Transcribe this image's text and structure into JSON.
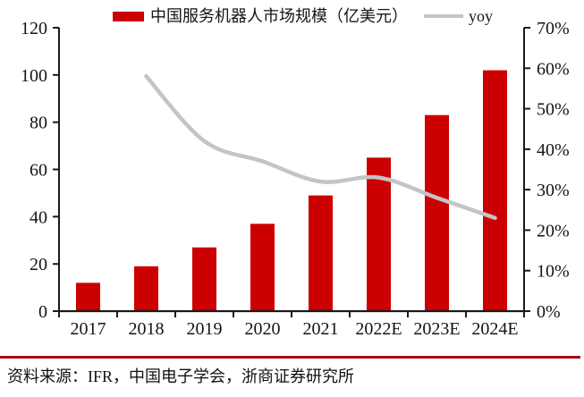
{
  "legend": {
    "bar_series_label": "中国服务机器人市场规模（亿美元）",
    "line_series_label": "yoy"
  },
  "footer": {
    "source_text": "资料来源：IFR，中国电子学会，浙商证券研究所"
  },
  "colors": {
    "bar": "#CC0000",
    "line": "#C4C4C4",
    "axis": "#1A1A1A",
    "footer_rule": "#A40F0F",
    "text": "#141414"
  },
  "chart_data": {
    "type": "bar",
    "subtype": "combo-bar-line",
    "title": "",
    "categories": [
      "2017",
      "2018",
      "2019",
      "2020",
      "2021",
      "2022E",
      "2023E",
      "2024E"
    ],
    "series": [
      {
        "name": "中国服务机器人市场规模（亿美元）",
        "type": "bar",
        "axis": "left",
        "unit": "亿美元",
        "values": [
          12,
          19,
          27,
          37,
          49,
          65,
          83,
          102
        ]
      },
      {
        "name": "yoy",
        "type": "line",
        "axis": "right",
        "unit": "%",
        "values": [
          null,
          58,
          42,
          37,
          32,
          33,
          28,
          23
        ]
      }
    ],
    "left_axis": {
      "min": 0,
      "max": 120,
      "step": 20,
      "tick_labels": [
        "0",
        "20",
        "40",
        "60",
        "80",
        "100",
        "120"
      ]
    },
    "right_axis": {
      "min": 0,
      "max": 70,
      "step": 10,
      "tick_labels": [
        "0%",
        "10%",
        "20%",
        "30%",
        "40%",
        "50%",
        "60%",
        "70%"
      ]
    },
    "grid": false,
    "legend_position": "top"
  }
}
